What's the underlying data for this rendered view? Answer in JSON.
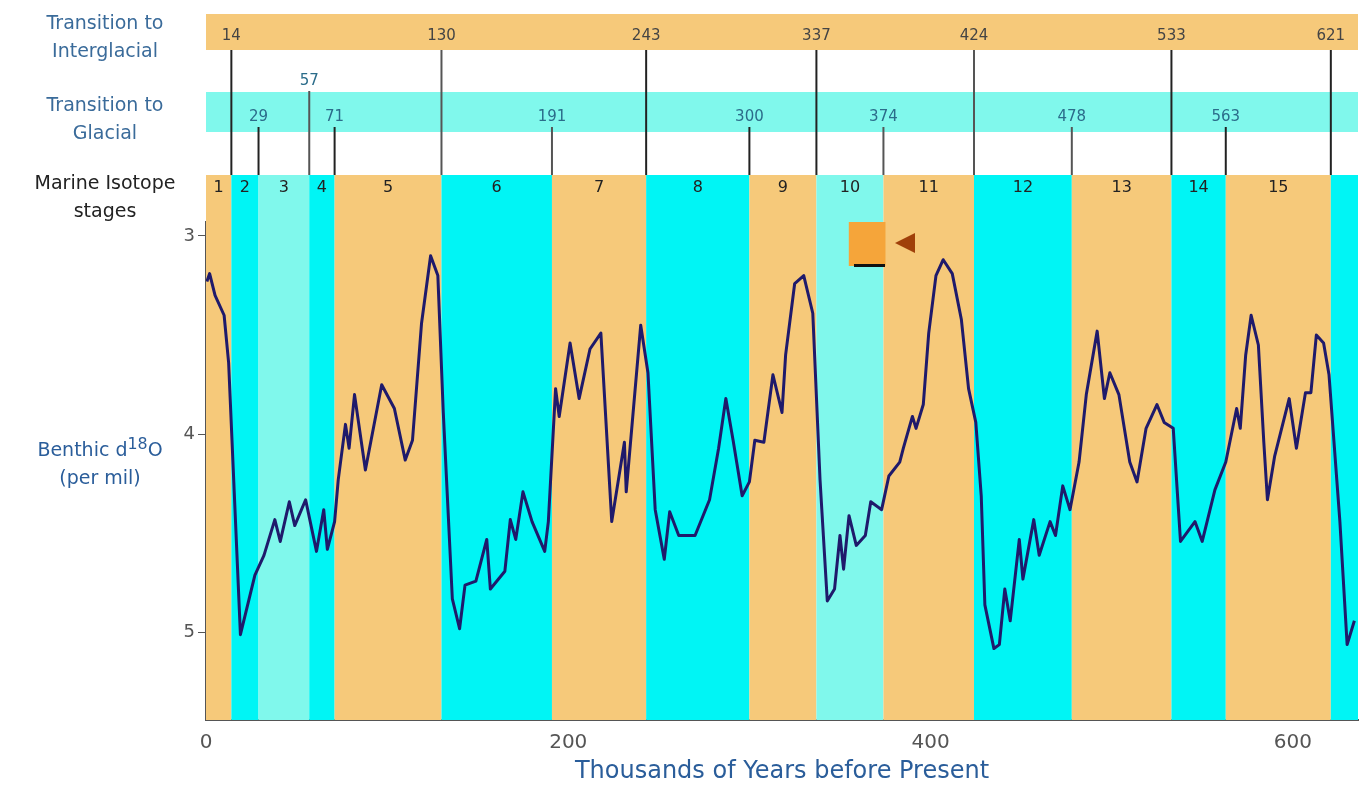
{
  "chart_data": {
    "type": "line",
    "xlabel": "Thousands of Years before Present",
    "ylabel": "Benthic d$^{18}$O (per mil)",
    "annotations": [
      "Transition to Interglacial",
      "Transition to Glacial",
      "Marine Isotope stages"
    ],
    "xlim": [
      0,
      636
    ],
    "xticks": [
      0,
      200,
      400,
      600
    ],
    "ylim": [
      5.44,
      2.93
    ],
    "yticks": [
      3,
      4,
      5
    ],
    "grid": false,
    "legend": false,
    "marker": "none",
    "line_style": "solid",
    "series": [
      {
        "color": "#1f1a6b",
        "x": [
          0.5,
          2,
          5,
          10,
          12.5,
          19,
          27,
          32,
          38,
          41,
          46,
          49,
          55,
          61,
          65,
          67,
          71,
          73,
          77,
          79,
          82,
          88,
          97,
          104,
          110,
          114,
          119,
          124,
          128,
          131,
          136,
          140,
          143,
          149,
          155,
          157,
          165,
          168,
          171,
          175,
          180,
          187,
          189,
          193,
          195,
          201,
          206,
          212,
          218,
          224,
          231,
          232,
          240,
          244,
          248,
          253,
          256,
          261,
          270,
          278,
          283,
          287,
          291,
          296,
          300,
          303,
          308,
          313,
          318,
          320,
          325,
          330,
          335,
          339,
          343,
          347,
          350,
          352,
          355,
          359,
          364,
          367,
          373,
          377,
          383,
          385,
          390,
          392,
          396,
          399,
          403,
          407,
          412,
          417,
          421,
          425,
          428,
          430,
          435,
          438,
          441,
          444,
          449,
          451,
          457,
          460,
          466,
          469,
          473,
          477,
          482,
          486,
          492,
          496,
          499,
          504,
          510,
          514,
          519,
          525,
          529,
          534,
          538,
          546,
          550,
          557,
          563,
          569,
          571,
          574,
          577,
          581,
          584,
          586,
          590,
          598,
          602,
          607,
          610,
          613,
          617,
          620,
          626,
          630,
          634
        ],
        "values": [
          3.23,
          3.19,
          3.3,
          3.4,
          3.64,
          5.01,
          4.71,
          4.61,
          4.43,
          4.54,
          4.34,
          4.46,
          4.33,
          4.59,
          4.38,
          4.58,
          4.44,
          4.23,
          3.95,
          4.07,
          3.8,
          4.18,
          3.75,
          3.87,
          4.13,
          4.03,
          3.44,
          3.1,
          3.2,
          3.89,
          4.83,
          4.98,
          4.76,
          4.74,
          4.53,
          4.78,
          4.69,
          4.43,
          4.53,
          4.29,
          4.44,
          4.59,
          4.44,
          3.77,
          3.91,
          3.54,
          3.82,
          3.57,
          3.49,
          4.44,
          4.04,
          4.29,
          3.45,
          3.69,
          4.38,
          4.63,
          4.39,
          4.51,
          4.51,
          4.33,
          4.07,
          3.82,
          4.03,
          4.31,
          4.24,
          4.03,
          4.04,
          3.7,
          3.89,
          3.6,
          3.24,
          3.2,
          3.39,
          4.23,
          4.84,
          4.78,
          4.51,
          4.68,
          4.41,
          4.56,
          4.51,
          4.34,
          4.38,
          4.21,
          4.14,
          4.07,
          3.91,
          3.97,
          3.85,
          3.49,
          3.2,
          3.12,
          3.19,
          3.42,
          3.77,
          3.94,
          4.31,
          4.86,
          5.08,
          5.06,
          4.78,
          4.94,
          4.53,
          4.73,
          4.43,
          4.61,
          4.44,
          4.51,
          4.26,
          4.38,
          4.14,
          3.8,
          3.48,
          3.82,
          3.69,
          3.8,
          4.14,
          4.24,
          3.97,
          3.85,
          3.94,
          3.97,
          4.54,
          4.44,
          4.54,
          4.28,
          4.14,
          3.87,
          3.97,
          3.6,
          3.4,
          3.55,
          4.04,
          4.33,
          4.11,
          3.82,
          4.07,
          3.79,
          3.79,
          3.5,
          3.54,
          3.7,
          4.44,
          5.06,
          4.94
        ]
      },
      {
        "type": "bar",
        "color": "#f5a53a",
        "x": [
          365
        ],
        "base": [
          2.93
        ],
        "values": [
          0.22
        ]
      }
    ],
    "bands": [
      {
        "axis": "x",
        "from": 0,
        "to": 14,
        "label": "1",
        "color": "#f6c97a"
      },
      {
        "axis": "x",
        "from": 14,
        "to": 29,
        "label": "2",
        "color": "#00f5f5"
      },
      {
        "axis": "x",
        "from": 29,
        "to": 57,
        "label": "3",
        "color": "#80f8ec"
      },
      {
        "axis": "x",
        "from": 57,
        "to": 71,
        "label": "4",
        "color": "#00f5f5"
      },
      {
        "axis": "x",
        "from": 71,
        "to": 130,
        "label": "5",
        "color": "#f6c97a"
      },
      {
        "axis": "x",
        "from": 130,
        "to": 191,
        "label": "6",
        "color": "#00f5f5"
      },
      {
        "axis": "x",
        "from": 191,
        "to": 243,
        "label": "7",
        "color": "#f6c97a"
      },
      {
        "axis": "x",
        "from": 243,
        "to": 300,
        "label": "8",
        "color": "#00f5f5"
      },
      {
        "axis": "x",
        "from": 300,
        "to": 337,
        "label": "9",
        "color": "#f6c97a"
      },
      {
        "axis": "x",
        "from": 337,
        "to": 374,
        "label": "10",
        "color": "#80f8ec"
      },
      {
        "axis": "x",
        "from": 374,
        "to": 424,
        "label": "11",
        "color": "#f6c97a"
      },
      {
        "axis": "x",
        "from": 424,
        "to": 478,
        "label": "12",
        "color": "#00f5f5"
      },
      {
        "axis": "x",
        "from": 478,
        "to": 533,
        "label": "13",
        "color": "#f6c97a"
      },
      {
        "axis": "x",
        "from": 533,
        "to": 563,
        "label": "14",
        "color": "#00f5f5"
      },
      {
        "axis": "x",
        "from": 563,
        "to": 621,
        "label": "15",
        "color": "#f6c97a"
      },
      {
        "axis": "x",
        "from": 621,
        "to": 636,
        "label": null,
        "color": "#00f5f5"
      }
    ],
    "ref_lines": [
      {
        "axis": "x",
        "value": 14,
        "label": "14",
        "color": "#222222"
      },
      {
        "axis": "x",
        "value": 29,
        "label": "29",
        "color": "#222222"
      },
      {
        "axis": "x",
        "value": 57,
        "label": "57",
        "color": "#555555"
      },
      {
        "axis": "x",
        "value": 71,
        "label": "71",
        "color": "#222222"
      },
      {
        "axis": "x",
        "value": 130,
        "label": "130",
        "color": "#555555"
      },
      {
        "axis": "x",
        "value": 191,
        "label": "191",
        "color": "#555555"
      },
      {
        "axis": "x",
        "value": 243,
        "label": "243",
        "color": "#222222"
      },
      {
        "axis": "x",
        "value": 300,
        "label": "300",
        "color": "#222222"
      },
      {
        "axis": "x",
        "value": 337,
        "label": "337",
        "color": "#222222"
      },
      {
        "axis": "x",
        "value": 374,
        "label": "374",
        "color": "#555555"
      },
      {
        "axis": "x",
        "value": 424,
        "label": "424",
        "color": "#555555"
      },
      {
        "axis": "x",
        "value": 478,
        "label": "478",
        "color": "#555555"
      },
      {
        "axis": "x",
        "value": 533,
        "label": "533",
        "color": "#222222"
      },
      {
        "axis": "x",
        "value": 563,
        "label": "563",
        "color": "#222222"
      },
      {
        "axis": "x",
        "value": 621,
        "label": "621",
        "color": "#222222"
      }
    ]
  }
}
